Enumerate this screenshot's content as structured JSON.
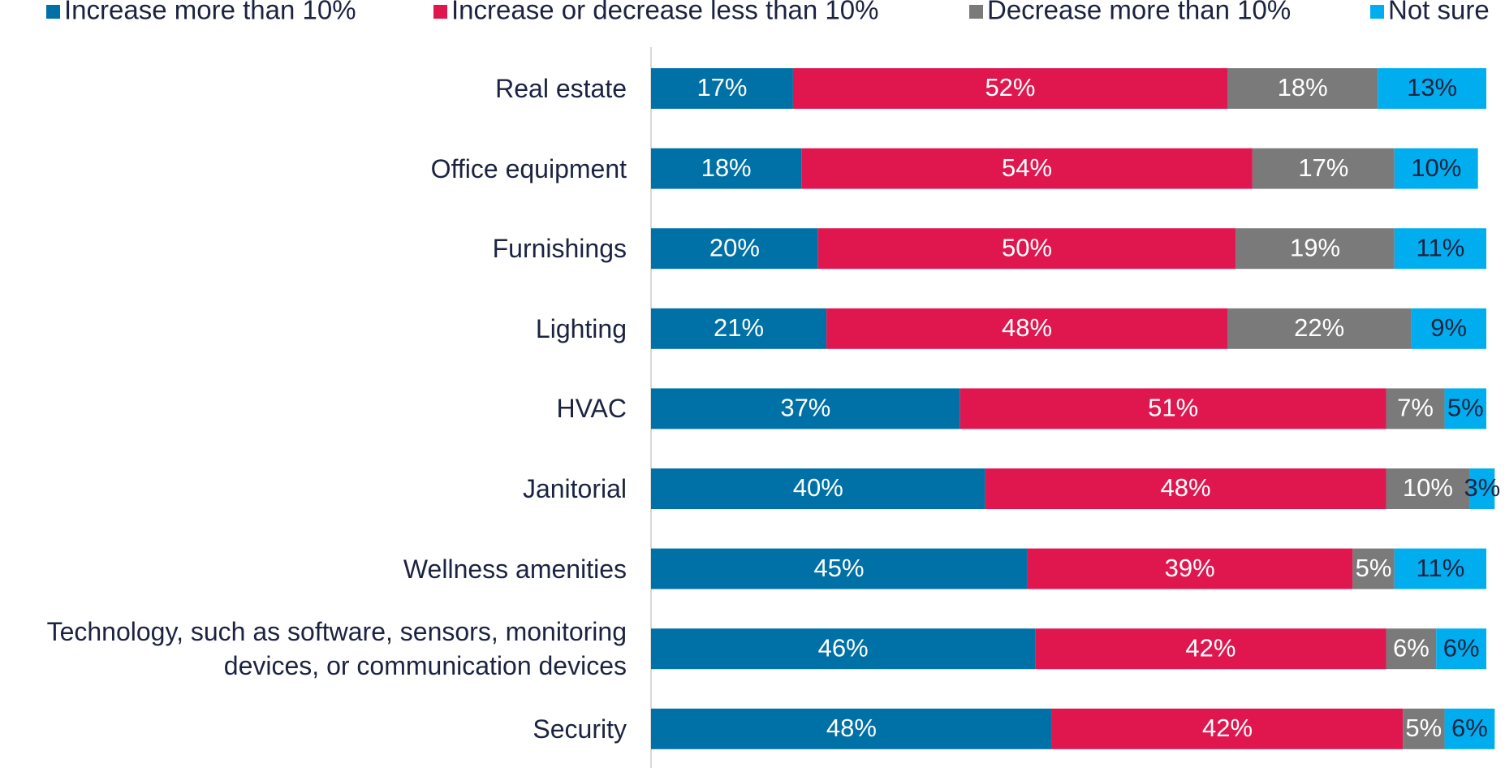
{
  "chart_data": {
    "type": "stacked_bar_horizontal",
    "categories": [
      "Real estate",
      "Office equipment",
      "Furnishings",
      "Lighting",
      "HVAC",
      "Janitorial",
      "Wellness amenities",
      "Technology, such as software, sensors, monitoring devices, or communication devices",
      "Security"
    ],
    "legend": "top",
    "series": [
      {
        "name": "Increase more than 10%",
        "color": "#0071a6",
        "label_color": "#ffffff",
        "values": [
          17,
          18,
          20,
          21,
          37,
          40,
          45,
          46,
          48
        ],
        "value_labels": [
          "17%",
          "18%",
          "20%",
          "21%",
          "37%",
          "40%",
          "45%",
          "46%",
          "48%"
        ]
      },
      {
        "name": "Increase or decrease less than 10%",
        "color": "#e0174f",
        "label_color": "#ffffff",
        "values": [
          52,
          54,
          50,
          48,
          51,
          48,
          39,
          42,
          42
        ],
        "value_labels": [
          "52%",
          "54%",
          "50%",
          "48%",
          "51%",
          "48%",
          "39%",
          "42%",
          "42%"
        ]
      },
      {
        "name": "Decrease more than 10%",
        "color": "#7a7a7a",
        "label_color": "#ffffff",
        "values": [
          18,
          17,
          19,
          22,
          7,
          10,
          5,
          6,
          5
        ],
        "value_labels": [
          "18%",
          "17%",
          "19%",
          "22%",
          "7%",
          "10%",
          "5%",
          "6%",
          "5%"
        ]
      },
      {
        "name": "Not sure",
        "color": "#00aeef",
        "label_color": "#1c2340",
        "values": [
          13,
          10,
          11,
          9,
          5,
          3,
          11,
          6,
          6
        ],
        "value_labels": [
          "13%",
          "10%",
          "11%",
          "9%",
          "5%",
          "3%",
          "11%",
          "6%",
          "6%"
        ]
      }
    ]
  }
}
